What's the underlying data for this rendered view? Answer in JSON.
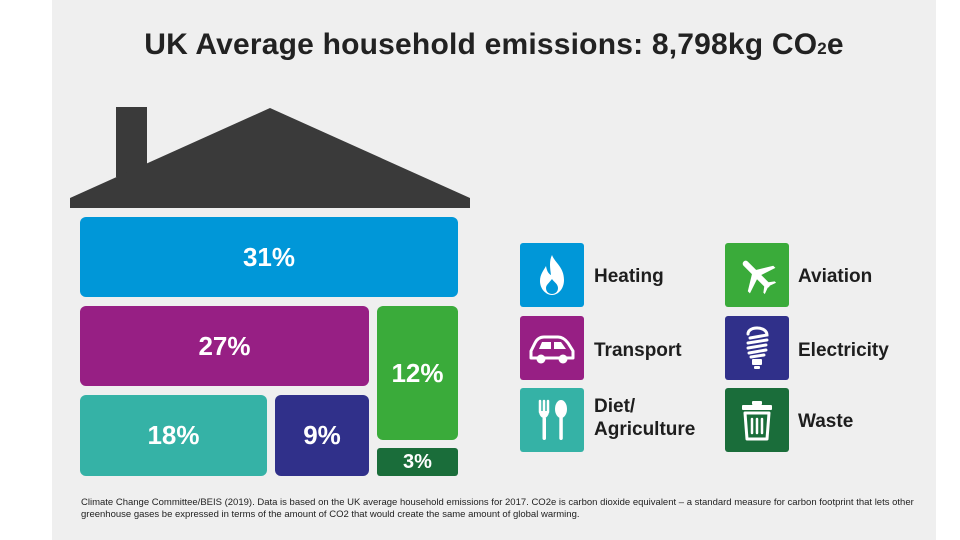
{
  "title": {
    "main": "UK Average household emissions: 8,798kg CO",
    "sub": "2",
    "tail": "e"
  },
  "chart_data": {
    "type": "treemap",
    "title": "UK Average household emissions: 8,798kg CO2e",
    "total_kg_co2e": 8798,
    "categories": [
      "Heating",
      "Transport",
      "Diet/ Agriculture",
      "Aviation",
      "Electricity",
      "Waste"
    ],
    "values": [
      31,
      27,
      18,
      12,
      9,
      3
    ],
    "labels": [
      "31%",
      "27%",
      "18%",
      "12%",
      "9%",
      "3%"
    ],
    "colors": [
      "#0097d8",
      "#971f84",
      "#35b2a6",
      "#3aab3a",
      "#30308a",
      "#1a6d3a"
    ]
  },
  "legend": [
    {
      "label": "Heating",
      "icon": "flame-icon",
      "color": "#0097d8"
    },
    {
      "label": "Aviation",
      "icon": "airplane-icon",
      "color": "#3aab3a"
    },
    {
      "label": "Transport",
      "icon": "car-icon",
      "color": "#971f84"
    },
    {
      "label": "Electricity",
      "icon": "lightbulb-icon",
      "color": "#30308a"
    },
    {
      "label": "Diet/ Agriculture",
      "label_line1": "Diet/",
      "label_line2": "Agriculture",
      "icon": "fork-spoon-icon",
      "color": "#35b2a6"
    },
    {
      "label": "Waste",
      "icon": "trash-can-icon",
      "color": "#1a6d3a"
    }
  ],
  "roof_color": "#3a3a3a",
  "footnote": "Climate Change Committee/BEIS (2019). Data is based on the UK average household emissions for 2017. CO2e is carbon dioxide equivalent – a standard measure for carbon footprint that lets other greenhouse gases be expressed in terms of the amount of CO2 that would create the same amount of global warming."
}
